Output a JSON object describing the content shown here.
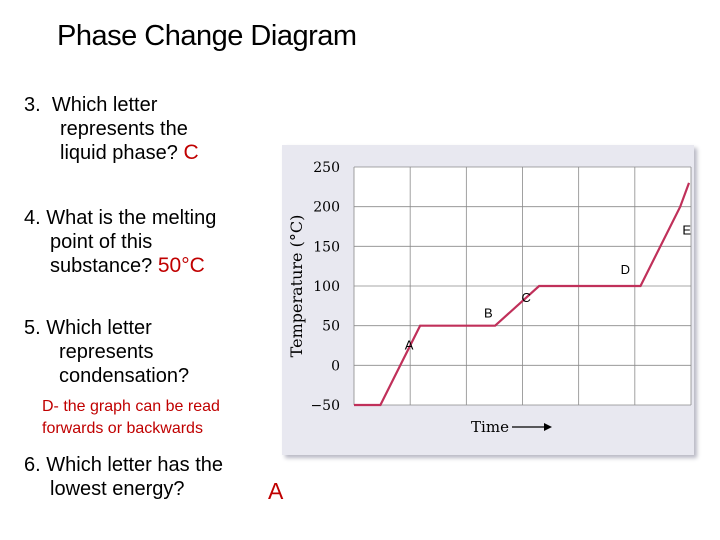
{
  "title": "Phase Change Diagram",
  "questions": [
    {
      "number": "3.",
      "lines": [
        "Which letter",
        "represents the",
        "liquid phase?"
      ],
      "answer": "C"
    },
    {
      "number": "4.",
      "lines": [
        "What is the melting",
        "point of this",
        "substance?"
      ],
      "answer": "50°C"
    },
    {
      "number": "5.",
      "lines": [
        "Which letter",
        "represents",
        "condensation?"
      ],
      "answer": "D- the graph can be read",
      "answer_line2": "forwards or backwards"
    },
    {
      "number": "6.",
      "lines": [
        "Which letter has the",
        "lowest energy?"
      ],
      "answer": "A"
    }
  ],
  "chart_data": {
    "type": "line",
    "title": "",
    "xlabel": "Time",
    "ylabel": "Temperature (°C)",
    "ylim": [
      -50,
      250
    ],
    "yticks": [
      "250",
      "200",
      "150",
      "100",
      "50",
      "0",
      "−50"
    ],
    "grid": true,
    "series": [
      {
        "values": [
          {
            "t": 0,
            "temp": -50
          },
          {
            "t": 0.6,
            "temp": -50
          },
          {
            "t": 1.5,
            "temp": 50
          },
          {
            "t": 3.2,
            "temp": 50
          },
          {
            "t": 4.2,
            "temp": 100
          },
          {
            "t": 6.2,
            "temp": 100
          },
          {
            "t": 6.5,
            "temp": 100
          },
          {
            "t": 7.4,
            "temp": 200
          },
          {
            "t": 7.6,
            "temp": 230
          }
        ]
      }
    ],
    "annotations": [
      {
        "label": "A",
        "t": 1.15,
        "temp": 20
      },
      {
        "label": "B",
        "t": 2.95,
        "temp": 60
      },
      {
        "label": "C",
        "t": 3.8,
        "temp": 80
      },
      {
        "label": "D",
        "t": 6.05,
        "temp": 115
      },
      {
        "label": "E",
        "t": 7.45,
        "temp": 165
      }
    ],
    "color": "#c0305a"
  }
}
